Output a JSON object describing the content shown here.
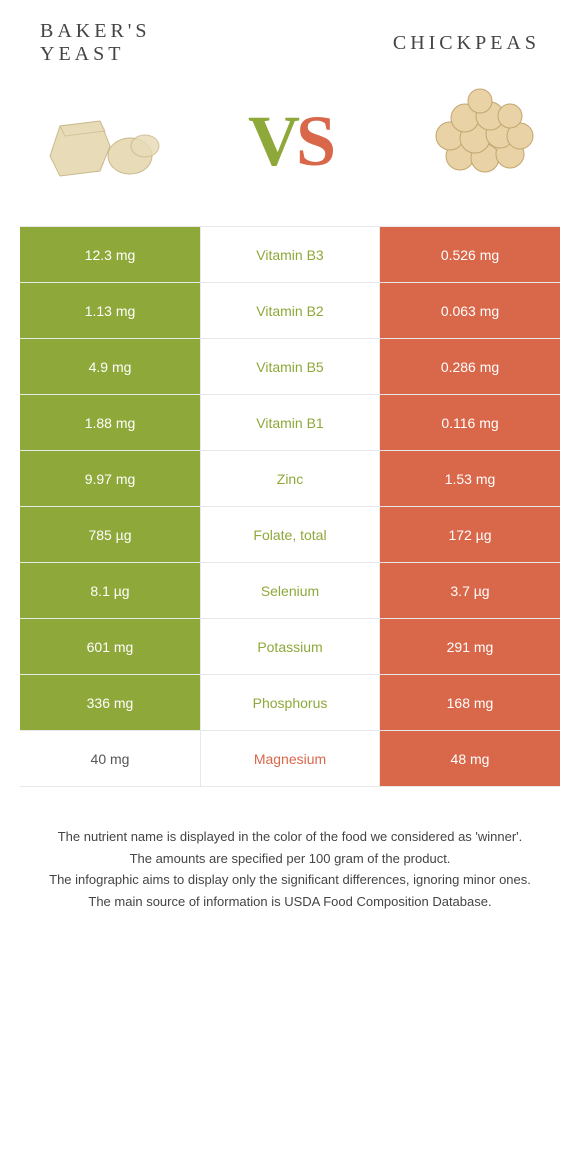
{
  "header": {
    "left_title": "BAKER'S\nYEAST",
    "right_title": "CHICKPEAS",
    "vs_v": "V",
    "vs_s": "S"
  },
  "colors": {
    "green": "#8fa83a",
    "orange": "#d9674a",
    "row_border": "#e8e8e8",
    "text": "#444444",
    "background": "#ffffff"
  },
  "table": {
    "rows": [
      {
        "nutrient": "Vitamin B3",
        "left": "12.3 mg",
        "right": "0.526 mg",
        "left_bg": "green",
        "right_bg": "orange",
        "mid_color": "green"
      },
      {
        "nutrient": "Vitamin B2",
        "left": "1.13 mg",
        "right": "0.063 mg",
        "left_bg": "green",
        "right_bg": "orange",
        "mid_color": "green"
      },
      {
        "nutrient": "Vitamin B5",
        "left": "4.9 mg",
        "right": "0.286 mg",
        "left_bg": "green",
        "right_bg": "orange",
        "mid_color": "green"
      },
      {
        "nutrient": "Vitamin B1",
        "left": "1.88 mg",
        "right": "0.116 mg",
        "left_bg": "green",
        "right_bg": "orange",
        "mid_color": "green"
      },
      {
        "nutrient": "Zinc",
        "left": "9.97 mg",
        "right": "1.53 mg",
        "left_bg": "green",
        "right_bg": "orange",
        "mid_color": "green"
      },
      {
        "nutrient": "Folate, total",
        "left": "785 µg",
        "right": "172 µg",
        "left_bg": "green",
        "right_bg": "orange",
        "mid_color": "green"
      },
      {
        "nutrient": "Selenium",
        "left": "8.1 µg",
        "right": "3.7 µg",
        "left_bg": "green",
        "right_bg": "orange",
        "mid_color": "green"
      },
      {
        "nutrient": "Potassium",
        "left": "601 mg",
        "right": "291 mg",
        "left_bg": "green",
        "right_bg": "orange",
        "mid_color": "green"
      },
      {
        "nutrient": "Phosphorus",
        "left": "336 mg",
        "right": "168 mg",
        "left_bg": "green",
        "right_bg": "orange",
        "mid_color": "green"
      },
      {
        "nutrient": "Magnesium",
        "left": "40 mg",
        "right": "48 mg",
        "left_bg": "plain",
        "right_bg": "orange",
        "mid_color": "orange"
      }
    ]
  },
  "footnotes": {
    "l1": "The nutrient name is displayed in the color of the food we considered as 'winner'.",
    "l2": "The amounts are specified per 100 gram of the product.",
    "l3": "The infographic aims to display only the significant differences, ignoring minor ones.",
    "l4": "The main source of information is USDA Food Composition Database."
  }
}
